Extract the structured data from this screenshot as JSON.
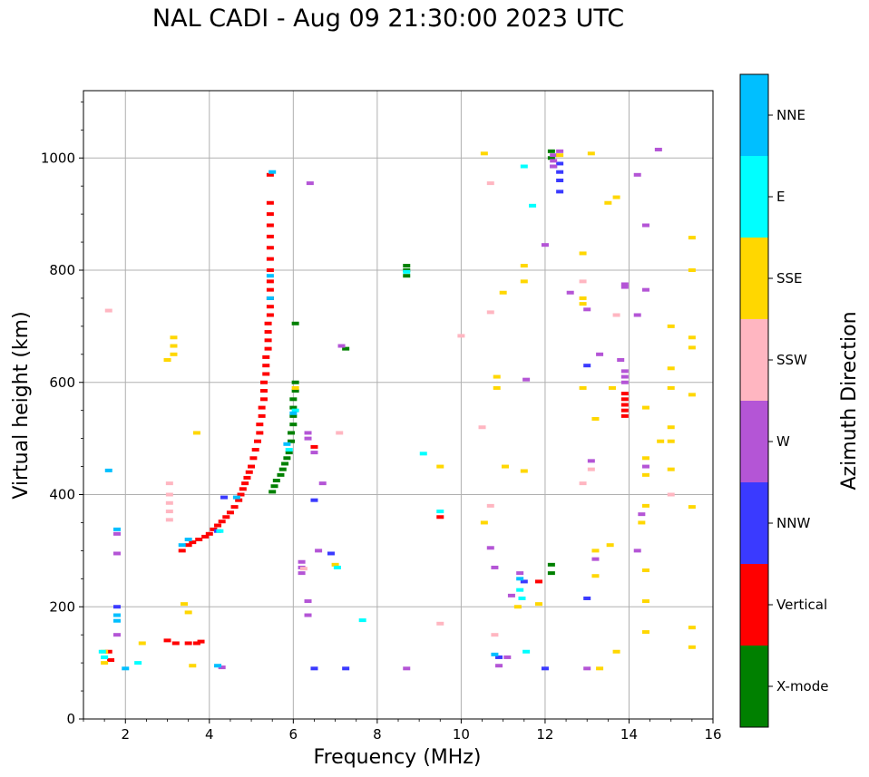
{
  "chart_data": {
    "type": "scatter",
    "title": "NAL CADI - Aug 09 21:30:00 2023 UTC",
    "xlabel": "Frequency (MHz)",
    "ylabel": "Virtual height (km)",
    "xlim": [
      1,
      16
    ],
    "ylim": [
      0,
      1120
    ],
    "grid": true,
    "x_ticks": [
      2,
      4,
      6,
      8,
      10,
      12,
      14,
      16
    ],
    "y_ticks": [
      0,
      200,
      400,
      600,
      800,
      1000
    ],
    "colorbar": {
      "label": "Azimuth Direction",
      "categories": [
        {
          "name": "X-mode",
          "color": "#008000"
        },
        {
          "name": "Vertical",
          "color": "#ff0000"
        },
        {
          "name": "NNW",
          "color": "#3a3aff"
        },
        {
          "name": "W",
          "color": "#b455d6"
        },
        {
          "name": "SSW",
          "color": "#ffb6c1"
        },
        {
          "name": "SSE",
          "color": "#ffd700"
        },
        {
          "name": "E",
          "color": "#00ffff"
        },
        {
          "name": "NNE",
          "color": "#00bfff"
        }
      ]
    },
    "series": [
      {
        "name": "Vertical",
        "points": [
          [
            3.35,
            300
          ],
          [
            3.5,
            310
          ],
          [
            3.6,
            315
          ],
          [
            3.75,
            320
          ],
          [
            3.9,
            325
          ],
          [
            4.0,
            330
          ],
          [
            4.1,
            338
          ],
          [
            4.2,
            345
          ],
          [
            4.3,
            352
          ],
          [
            4.4,
            360
          ],
          [
            4.5,
            368
          ],
          [
            4.6,
            378
          ],
          [
            4.7,
            390
          ],
          [
            4.75,
            400
          ],
          [
            4.8,
            410
          ],
          [
            4.85,
            420
          ],
          [
            4.9,
            430
          ],
          [
            4.95,
            440
          ],
          [
            5.0,
            450
          ],
          [
            5.05,
            465
          ],
          [
            5.1,
            480
          ],
          [
            5.15,
            495
          ],
          [
            5.2,
            510
          ],
          [
            5.2,
            525
          ],
          [
            5.25,
            540
          ],
          [
            5.25,
            555
          ],
          [
            5.3,
            570
          ],
          [
            5.3,
            585
          ],
          [
            5.3,
            600
          ],
          [
            5.35,
            615
          ],
          [
            5.35,
            630
          ],
          [
            5.35,
            645
          ],
          [
            5.4,
            660
          ],
          [
            5.4,
            675
          ],
          [
            5.4,
            690
          ],
          [
            5.4,
            705
          ],
          [
            5.45,
            720
          ],
          [
            5.45,
            735
          ],
          [
            5.45,
            750
          ],
          [
            5.45,
            765
          ],
          [
            5.45,
            780
          ],
          [
            5.45,
            800
          ],
          [
            5.45,
            820
          ],
          [
            5.45,
            840
          ],
          [
            5.45,
            860
          ],
          [
            5.45,
            880
          ],
          [
            5.45,
            900
          ],
          [
            5.45,
            920
          ],
          [
            5.45,
            970
          ],
          [
            1.6,
            120
          ],
          [
            1.65,
            105
          ],
          [
            3.0,
            140
          ],
          [
            3.2,
            135
          ],
          [
            3.5,
            135
          ],
          [
            3.7,
            135
          ],
          [
            3.8,
            138
          ],
          [
            6.5,
            485
          ],
          [
            9.5,
            360
          ],
          [
            11.85,
            245
          ],
          [
            13.9,
            540
          ],
          [
            13.9,
            550
          ],
          [
            13.9,
            560
          ],
          [
            13.9,
            570
          ],
          [
            13.9,
            580
          ]
        ]
      },
      {
        "name": "X-mode",
        "points": [
          [
            5.5,
            405
          ],
          [
            5.55,
            415
          ],
          [
            5.6,
            425
          ],
          [
            5.7,
            435
          ],
          [
            5.75,
            445
          ],
          [
            5.8,
            455
          ],
          [
            5.85,
            465
          ],
          [
            5.9,
            475
          ],
          [
            5.95,
            495
          ],
          [
            5.95,
            510
          ],
          [
            6.0,
            525
          ],
          [
            6.0,
            540
          ],
          [
            6.0,
            555
          ],
          [
            6.0,
            570
          ],
          [
            6.05,
            585
          ],
          [
            6.05,
            600
          ],
          [
            6.05,
            705
          ],
          [
            7.25,
            660
          ],
          [
            8.7,
            790
          ],
          [
            8.7,
            800
          ],
          [
            8.7,
            808
          ],
          [
            12.15,
            1000
          ],
          [
            12.15,
            1012
          ],
          [
            12.15,
            260
          ],
          [
            12.15,
            275
          ]
        ]
      },
      {
        "name": "NNW",
        "points": [
          [
            1.8,
            200
          ],
          [
            4.35,
            395
          ],
          [
            4.2,
            335
          ],
          [
            6.5,
            390
          ],
          [
            6.5,
            90
          ],
          [
            6.9,
            295
          ],
          [
            7.25,
            90
          ],
          [
            10.9,
            110
          ],
          [
            11.5,
            245
          ],
          [
            12.0,
            90
          ],
          [
            12.35,
            940
          ],
          [
            12.35,
            960
          ],
          [
            12.35,
            975
          ],
          [
            12.35,
            990
          ],
          [
            12.2,
            985
          ],
          [
            13.0,
            630
          ],
          [
            13.0,
            215
          ]
        ]
      },
      {
        "name": "W",
        "points": [
          [
            1.8,
            150
          ],
          [
            1.8,
            330
          ],
          [
            1.8,
            295
          ],
          [
            4.3,
            92
          ],
          [
            6.2,
            260
          ],
          [
            6.2,
            270
          ],
          [
            6.2,
            280
          ],
          [
            6.35,
            500
          ],
          [
            6.35,
            510
          ],
          [
            6.35,
            185
          ],
          [
            6.35,
            210
          ],
          [
            6.6,
            300
          ],
          [
            6.7,
            420
          ],
          [
            6.5,
            475
          ],
          [
            6.4,
            955
          ],
          [
            7.15,
            665
          ],
          [
            8.7,
            90
          ],
          [
            10.7,
            305
          ],
          [
            10.8,
            270
          ],
          [
            10.9,
            95
          ],
          [
            11.1,
            110
          ],
          [
            11.2,
            220
          ],
          [
            11.4,
            260
          ],
          [
            11.55,
            605
          ],
          [
            12.0,
            845
          ],
          [
            12.2,
            985
          ],
          [
            12.2,
            995
          ],
          [
            12.2,
            1005
          ],
          [
            12.35,
            1012
          ],
          [
            12.6,
            760
          ],
          [
            13.0,
            730
          ],
          [
            13.2,
            285
          ],
          [
            13.3,
            650
          ],
          [
            13.8,
            640
          ],
          [
            13.9,
            600
          ],
          [
            13.9,
            610
          ],
          [
            13.9,
            620
          ],
          [
            13.9,
            775
          ],
          [
            14.2,
            970
          ],
          [
            14.2,
            720
          ],
          [
            14.2,
            300
          ],
          [
            14.4,
            880
          ],
          [
            14.4,
            450
          ],
          [
            14.7,
            1015
          ],
          [
            14.4,
            765
          ],
          [
            14.3,
            365
          ],
          [
            13.1,
            460
          ],
          [
            13.9,
            770
          ],
          [
            13.0,
            90
          ]
        ]
      },
      {
        "name": "SSW",
        "points": [
          [
            1.6,
            728
          ],
          [
            3.05,
            355
          ],
          [
            3.05,
            370
          ],
          [
            3.05,
            385
          ],
          [
            3.05,
            400
          ],
          [
            3.05,
            420
          ],
          [
            6.25,
            268
          ],
          [
            7.1,
            510
          ],
          [
            9.5,
            170
          ],
          [
            10.5,
            520
          ],
          [
            10.7,
            725
          ],
          [
            10.7,
            955
          ],
          [
            10.7,
            380
          ],
          [
            10.8,
            150
          ],
          [
            12.9,
            780
          ],
          [
            12.9,
            420
          ],
          [
            13.1,
            445
          ],
          [
            13.7,
            720
          ],
          [
            15.0,
            400
          ],
          [
            10.0,
            683
          ]
        ]
      },
      {
        "name": "SSE",
        "points": [
          [
            1.5,
            100
          ],
          [
            1.5,
            120
          ],
          [
            2.4,
            135
          ],
          [
            3.6,
            95
          ],
          [
            3.4,
            205
          ],
          [
            3.5,
            190
          ],
          [
            3.7,
            510
          ],
          [
            3.15,
            650
          ],
          [
            3.15,
            665
          ],
          [
            3.15,
            680
          ],
          [
            3.0,
            640
          ],
          [
            6.05,
            590
          ],
          [
            7.0,
            275
          ],
          [
            9.5,
            450
          ],
          [
            10.55,
            1008
          ],
          [
            10.55,
            350
          ],
          [
            10.85,
            610
          ],
          [
            10.85,
            590
          ],
          [
            11.0,
            760
          ],
          [
            11.05,
            450
          ],
          [
            11.5,
            808
          ],
          [
            11.5,
            780
          ],
          [
            11.5,
            442
          ],
          [
            11.35,
            200
          ],
          [
            11.85,
            205
          ],
          [
            12.35,
            1005
          ],
          [
            12.9,
            830
          ],
          [
            12.9,
            750
          ],
          [
            12.9,
            740
          ],
          [
            12.9,
            590
          ],
          [
            13.2,
            535
          ],
          [
            13.1,
            1008
          ],
          [
            13.3,
            90
          ],
          [
            13.2,
            300
          ],
          [
            13.2,
            255
          ],
          [
            13.55,
            310
          ],
          [
            13.5,
            920
          ],
          [
            13.7,
            120
          ],
          [
            13.7,
            930
          ],
          [
            13.6,
            590
          ],
          [
            14.3,
            350
          ],
          [
            14.4,
            555
          ],
          [
            14.4,
            465
          ],
          [
            14.4,
            435
          ],
          [
            14.4,
            380
          ],
          [
            14.4,
            265
          ],
          [
            14.4,
            210
          ],
          [
            14.4,
            155
          ],
          [
            14.75,
            495
          ],
          [
            15.0,
            700
          ],
          [
            15.0,
            625
          ],
          [
            15.0,
            590
          ],
          [
            15.0,
            520
          ],
          [
            15.0,
            445
          ],
          [
            15.0,
            495
          ],
          [
            15.5,
            858
          ],
          [
            15.5,
            800
          ],
          [
            15.5,
            680
          ],
          [
            15.5,
            662
          ],
          [
            15.5,
            578
          ],
          [
            15.5,
            378
          ],
          [
            15.5,
            163
          ],
          [
            15.5,
            128
          ]
        ]
      },
      {
        "name": "E",
        "points": [
          [
            1.45,
            120
          ],
          [
            1.5,
            110
          ],
          [
            2.3,
            100
          ],
          [
            4.25,
            335
          ],
          [
            5.9,
            480
          ],
          [
            6.05,
            550
          ],
          [
            7.05,
            270
          ],
          [
            7.65,
            176
          ],
          [
            8.7,
            797
          ],
          [
            9.1,
            473
          ],
          [
            9.5,
            370
          ],
          [
            11.5,
            985
          ],
          [
            11.7,
            915
          ],
          [
            11.55,
            120
          ],
          [
            11.45,
            215
          ],
          [
            11.4,
            230
          ]
        ]
      },
      {
        "name": "NNE",
        "points": [
          [
            1.6,
            443
          ],
          [
            1.8,
            175
          ],
          [
            1.8,
            185
          ],
          [
            1.8,
            338
          ],
          [
            2.0,
            90
          ],
          [
            3.35,
            310
          ],
          [
            3.5,
            320
          ],
          [
            4.2,
            95
          ],
          [
            4.65,
            395
          ],
          [
            5.45,
            750
          ],
          [
            5.45,
            790
          ],
          [
            5.5,
            975
          ],
          [
            5.85,
            490
          ],
          [
            6.0,
            545
          ],
          [
            10.8,
            115
          ],
          [
            11.4,
            250
          ]
        ]
      }
    ]
  }
}
